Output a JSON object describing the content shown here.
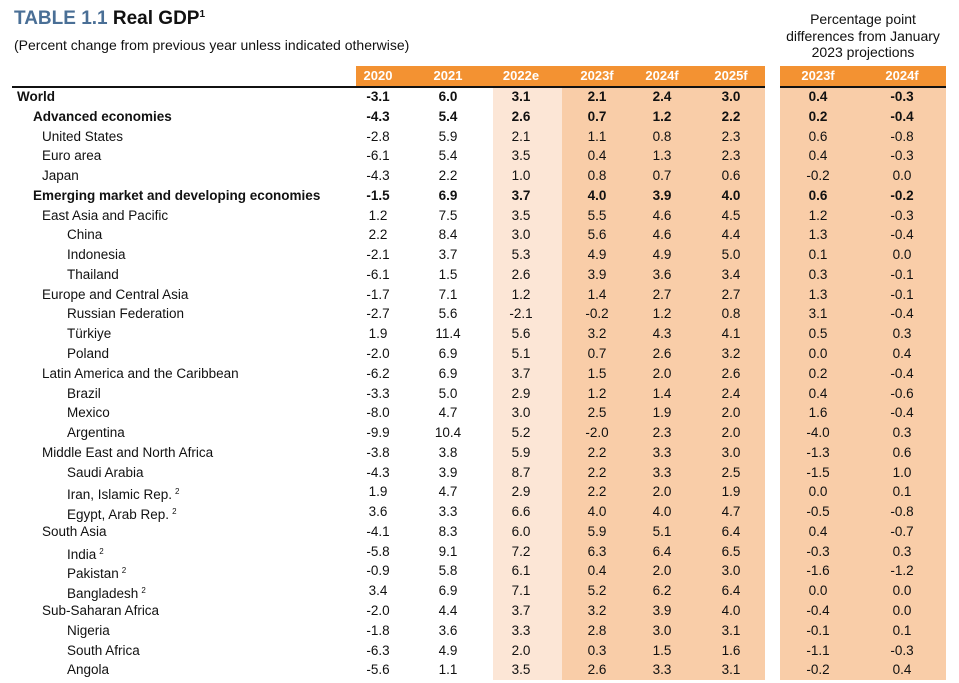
{
  "header": {
    "table_number": "TABLE 1.1",
    "title": "Real GDP",
    "title_footnote": "1",
    "subtitle": "(Percent change from previous year unless indicated otherwise)",
    "right_block_title": "Percentage point differences from January 2023 projections"
  },
  "colors": {
    "header_orange": "#f39232",
    "estimate_bg": "#fce6d6",
    "forecast_bg": "#f9cda8",
    "title_blue": "#4a6f96"
  },
  "columns": [
    "2020",
    "2021",
    "2022e",
    "2023f",
    "2024f",
    "2025f"
  ],
  "diff_columns": [
    "2023f",
    "2024f"
  ],
  "rows": [
    {
      "label": "World",
      "level": 0,
      "bold": true,
      "values": [
        "-3.1",
        "6.0",
        "3.1",
        "2.1",
        "2.4",
        "3.0"
      ],
      "diff": [
        "0.4",
        "-0.3"
      ]
    },
    {
      "label": "Advanced economies",
      "level": 1,
      "bold": true,
      "values": [
        "-4.3",
        "5.4",
        "2.6",
        "0.7",
        "1.2",
        "2.2"
      ],
      "diff": [
        "0.2",
        "-0.4"
      ]
    },
    {
      "label": "United States",
      "level": 2,
      "values": [
        "-2.8",
        "5.9",
        "2.1",
        "1.1",
        "0.8",
        "2.3"
      ],
      "diff": [
        "0.6",
        "-0.8"
      ]
    },
    {
      "label": "Euro area",
      "level": 2,
      "values": [
        "-6.1",
        "5.4",
        "3.5",
        "0.4",
        "1.3",
        "2.3"
      ],
      "diff": [
        "0.4",
        "-0.3"
      ]
    },
    {
      "label": "Japan",
      "level": 2,
      "values": [
        "-4.3",
        "2.2",
        "1.0",
        "0.8",
        "0.7",
        "0.6"
      ],
      "diff": [
        "-0.2",
        "0.0"
      ]
    },
    {
      "label": "Emerging market and developing economies",
      "level": 1,
      "bold": true,
      "values": [
        "-1.5",
        "6.9",
        "3.7",
        "4.0",
        "3.9",
        "4.0"
      ],
      "diff": [
        "0.6",
        "-0.2"
      ]
    },
    {
      "label": "East Asia and Pacific",
      "level": 2,
      "values": [
        "1.2",
        "7.5",
        "3.5",
        "5.5",
        "4.6",
        "4.5"
      ],
      "diff": [
        "1.2",
        "-0.3"
      ]
    },
    {
      "label": "China",
      "level": 3,
      "values": [
        "2.2",
        "8.4",
        "3.0",
        "5.6",
        "4.6",
        "4.4"
      ],
      "diff": [
        "1.3",
        "-0.4"
      ]
    },
    {
      "label": "Indonesia",
      "level": 3,
      "values": [
        "-2.1",
        "3.7",
        "5.3",
        "4.9",
        "4.9",
        "5.0"
      ],
      "diff": [
        "0.1",
        "0.0"
      ]
    },
    {
      "label": "Thailand",
      "level": 3,
      "values": [
        "-6.1",
        "1.5",
        "2.6",
        "3.9",
        "3.6",
        "3.4"
      ],
      "diff": [
        "0.3",
        "-0.1"
      ]
    },
    {
      "label": "Europe and Central Asia",
      "level": 2,
      "values": [
        "-1.7",
        "7.1",
        "1.2",
        "1.4",
        "2.7",
        "2.7"
      ],
      "diff": [
        "1.3",
        "-0.1"
      ]
    },
    {
      "label": "Russian Federation",
      "level": 3,
      "values": [
        "-2.7",
        "5.6",
        "-2.1",
        "-0.2",
        "1.2",
        "0.8"
      ],
      "diff": [
        "3.1",
        "-0.4"
      ]
    },
    {
      "label": "Türkiye",
      "level": 3,
      "values": [
        "1.9",
        "11.4",
        "5.6",
        "3.2",
        "4.3",
        "4.1"
      ],
      "diff": [
        "0.5",
        "0.3"
      ]
    },
    {
      "label": "Poland",
      "level": 3,
      "values": [
        "-2.0",
        "6.9",
        "5.1",
        "0.7",
        "2.6",
        "3.2"
      ],
      "diff": [
        "0.0",
        "0.4"
      ]
    },
    {
      "label": "Latin America and the Caribbean",
      "level": 2,
      "values": [
        "-6.2",
        "6.9",
        "3.7",
        "1.5",
        "2.0",
        "2.6"
      ],
      "diff": [
        "0.2",
        "-0.4"
      ]
    },
    {
      "label": "Brazil",
      "level": 3,
      "values": [
        "-3.3",
        "5.0",
        "2.9",
        "1.2",
        "1.4",
        "2.4"
      ],
      "diff": [
        "0.4",
        "-0.6"
      ]
    },
    {
      "label": "Mexico",
      "level": 3,
      "values": [
        "-8.0",
        "4.7",
        "3.0",
        "2.5",
        "1.9",
        "2.0"
      ],
      "diff": [
        "1.6",
        "-0.4"
      ]
    },
    {
      "label": "Argentina",
      "level": 3,
      "values": [
        "-9.9",
        "10.4",
        "5.2",
        "-2.0",
        "2.3",
        "2.0"
      ],
      "diff": [
        "-4.0",
        "0.3"
      ]
    },
    {
      "label": "Middle East and North Africa",
      "level": 2,
      "values": [
        "-3.8",
        "3.8",
        "5.9",
        "2.2",
        "3.3",
        "3.0"
      ],
      "diff": [
        "-1.3",
        "0.6"
      ]
    },
    {
      "label": "Saudi Arabia",
      "level": 3,
      "values": [
        "-4.3",
        "3.9",
        "8.7",
        "2.2",
        "3.3",
        "2.5"
      ],
      "diff": [
        "-1.5",
        "1.0"
      ]
    },
    {
      "label": "Iran, Islamic Rep.",
      "sup": "2",
      "level": 3,
      "values": [
        "1.9",
        "4.7",
        "2.9",
        "2.2",
        "2.0",
        "1.9"
      ],
      "diff": [
        "0.0",
        "0.1"
      ]
    },
    {
      "label": "Egypt, Arab Rep.",
      "sup": "2",
      "level": 3,
      "values": [
        "3.6",
        "3.3",
        "6.6",
        "4.0",
        "4.0",
        "4.7"
      ],
      "diff": [
        "-0.5",
        "-0.8"
      ]
    },
    {
      "label": "South Asia",
      "level": 2,
      "values": [
        "-4.1",
        "8.3",
        "6.0",
        "5.9",
        "5.1",
        "6.4"
      ],
      "diff": [
        "0.4",
        "-0.7"
      ]
    },
    {
      "label": "India",
      "sup": "2",
      "level": 3,
      "values": [
        "-5.8",
        "9.1",
        "7.2",
        "6.3",
        "6.4",
        "6.5"
      ],
      "diff": [
        "-0.3",
        "0.3"
      ]
    },
    {
      "label": "Pakistan",
      "sup": "2",
      "level": 3,
      "values": [
        "-0.9",
        "5.8",
        "6.1",
        "0.4",
        "2.0",
        "3.0"
      ],
      "diff": [
        "-1.6",
        "-1.2"
      ]
    },
    {
      "label": "Bangladesh",
      "sup": "2",
      "level": 3,
      "values": [
        "3.4",
        "6.9",
        "7.1",
        "5.2",
        "6.2",
        "6.4"
      ],
      "diff": [
        "0.0",
        "0.0"
      ]
    },
    {
      "label": "Sub-Saharan Africa",
      "level": 2,
      "values": [
        "-2.0",
        "4.4",
        "3.7",
        "3.2",
        "3.9",
        "4.0"
      ],
      "diff": [
        "-0.4",
        "0.0"
      ]
    },
    {
      "label": "Nigeria",
      "level": 3,
      "values": [
        "-1.8",
        "3.6",
        "3.3",
        "2.8",
        "3.0",
        "3.1"
      ],
      "diff": [
        "-0.1",
        "0.1"
      ]
    },
    {
      "label": "South Africa",
      "level": 3,
      "values": [
        "-6.3",
        "4.9",
        "2.0",
        "0.3",
        "1.5",
        "1.6"
      ],
      "diff": [
        "-1.1",
        "-0.3"
      ]
    },
    {
      "label": "Angola",
      "level": 3,
      "values": [
        "-5.6",
        "1.1",
        "3.5",
        "2.6",
        "3.3",
        "3.1"
      ],
      "diff": [
        "-0.2",
        "0.4"
      ]
    }
  ]
}
